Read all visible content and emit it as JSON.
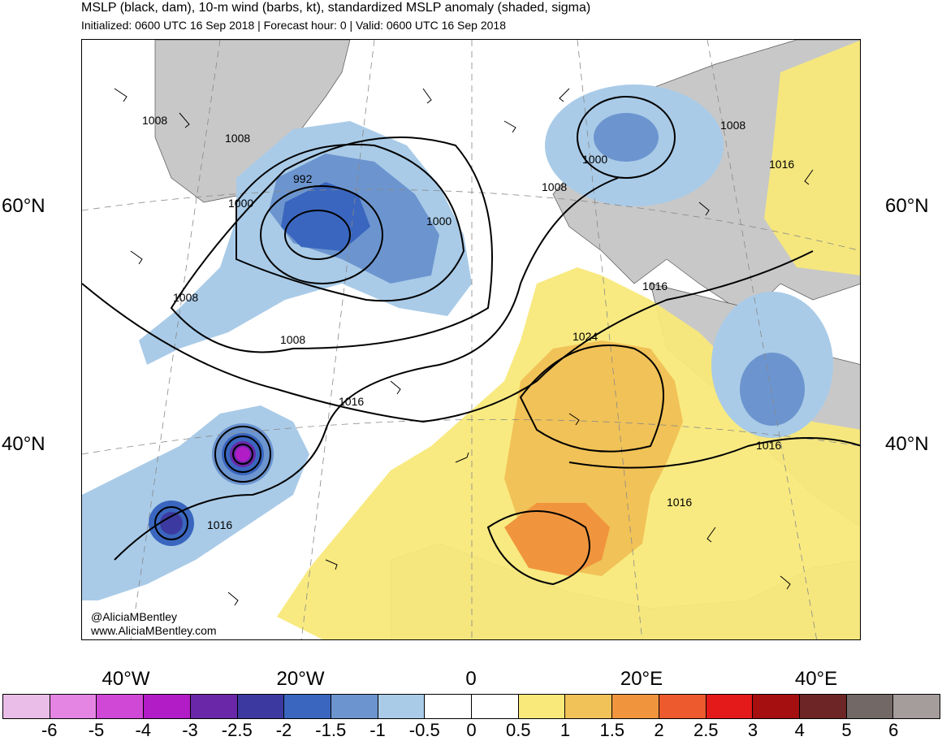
{
  "title": "MSLP (black, dam), 10-m wind (barbs, kt), standardized MSLP anomaly (shaded, sigma)",
  "subtitle": "Initialized: 0600 UTC 16 Sep 2018 | Forecast hour: 0 | Valid: 0600 UTC 16 Sep 2018",
  "lat_labels": {
    "n60": "60°N",
    "n40": "40°N"
  },
  "lon_labels": {
    "w40": "40°W",
    "w20": "20°W",
    "zero": "0",
    "e20": "20°E",
    "e40": "40°E"
  },
  "credit": {
    "handle": "@AliciaMBentley",
    "site": "www.AliciaMBentley.com"
  },
  "contour_labels": {
    "c992": "992",
    "c1000": "1000",
    "c1008": "1008",
    "c1016": "1016",
    "c1024": "1024"
  },
  "colorbar": {
    "colors": [
      "#eabde8",
      "#e585e3",
      "#d048d6",
      "#b21cc6",
      "#6a28a8",
      "#3c3aa0",
      "#3a66bf",
      "#6c95cf",
      "#a9cbe8",
      "#ffffff",
      "#ffffff",
      "#f8e97a",
      "#f1c257",
      "#f0953e",
      "#ec5a2d",
      "#e4191a",
      "#a50f0f",
      "#6e2525",
      "#726866",
      "#a59d9c"
    ],
    "labels": [
      "-6",
      "-5",
      "-4",
      "-3",
      "-2.5",
      "-2",
      "-1.5",
      "-1",
      "-0.5",
      "0",
      "0.5",
      "1",
      "1.5",
      "2",
      "2.5",
      "3",
      "4",
      "5",
      "6"
    ]
  }
}
